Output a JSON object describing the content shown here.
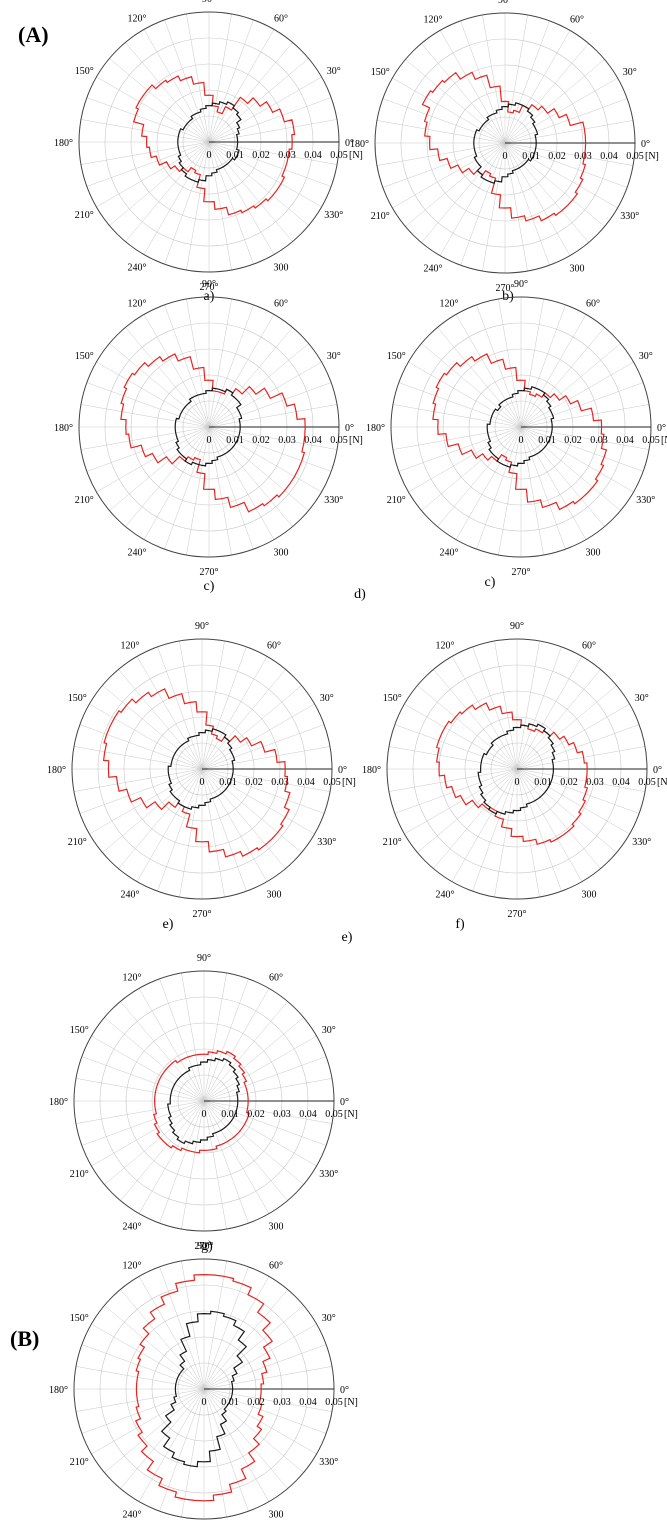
{
  "panels": [
    {
      "tag": "(A)"
    },
    {
      "tag": "(B)"
    }
  ],
  "captions": [
    "a)",
    "b)",
    "c)",
    "d)",
    "c)",
    "e)",
    "e)",
    "f)",
    "g)"
  ],
  "axes": {
    "angle_labels": [
      "0°",
      "30°",
      "60°",
      "90°",
      "120°",
      "150°",
      "180°",
      "210°",
      "240°",
      "270°",
      "300",
      "330°"
    ],
    "radial_tick_labels": [
      "0",
      "0.01",
      "0.02",
      "0.03",
      "0.04",
      "0.05"
    ],
    "unit_label": "[N]"
  },
  "colors": {
    "series_red": "#e8231f",
    "series_black": "#1a1a1a",
    "grid": "#c8c8c8",
    "frame": "#444444"
  },
  "chart_data": [
    {
      "type": "polar-step",
      "panel": "a)",
      "rlim": [
        0,
        0.05
      ],
      "bins_deg": 10,
      "series": [
        {
          "color": "red",
          "values": [
            0.032,
            0.033,
            0.03,
            0.027,
            0.024,
            0.021,
            0.015,
            0.012,
            0.014,
            0.018,
            0.023,
            0.026,
            0.028,
            0.029,
            0.031,
            0.031,
            0.03,
            0.026,
            0.024,
            0.023,
            0.021,
            0.018,
            0.016,
            0.014,
            0.012,
            0.013,
            0.018,
            0.023,
            0.026,
            0.029,
            0.03,
            0.031,
            0.032,
            0.032,
            0.031,
            0.031
          ]
        },
        {
          "color": "black",
          "values": [
            0.011,
            0.011,
            0.012,
            0.013,
            0.015,
            0.016,
            0.017,
            0.016,
            0.015,
            0.014,
            0.013,
            0.012,
            0.012,
            0.011,
            0.011,
            0.011,
            0.012,
            0.012,
            0.012,
            0.012,
            0.012,
            0.013,
            0.014,
            0.015,
            0.016,
            0.016,
            0.015,
            0.013,
            0.012,
            0.011,
            0.011,
            0.011,
            0.011,
            0.012,
            0.012,
            0.011
          ]
        }
      ]
    },
    {
      "type": "polar-step",
      "panel": "b)",
      "rlim": [
        0,
        0.05
      ],
      "bins_deg": 10,
      "series": [
        {
          "color": "red",
          "values": [
            0.031,
            0.031,
            0.026,
            0.023,
            0.02,
            0.018,
            0.016,
            0.013,
            0.012,
            0.016,
            0.022,
            0.027,
            0.03,
            0.033,
            0.034,
            0.035,
            0.032,
            0.031,
            0.029,
            0.026,
            0.023,
            0.02,
            0.017,
            0.015,
            0.013,
            0.014,
            0.02,
            0.025,
            0.029,
            0.031,
            0.033,
            0.034,
            0.034,
            0.033,
            0.032,
            0.031
          ]
        },
        {
          "color": "black",
          "values": [
            0.012,
            0.012,
            0.013,
            0.013,
            0.014,
            0.015,
            0.016,
            0.016,
            0.015,
            0.014,
            0.013,
            0.012,
            0.012,
            0.011,
            0.011,
            0.011,
            0.012,
            0.012,
            0.012,
            0.012,
            0.012,
            0.013,
            0.013,
            0.015,
            0.016,
            0.016,
            0.015,
            0.013,
            0.012,
            0.011,
            0.011,
            0.011,
            0.011,
            0.012,
            0.012,
            0.012
          ]
        }
      ]
    },
    {
      "type": "polar-step",
      "panel": "c)",
      "rlim": [
        0,
        0.05
      ],
      "bins_deg": 10,
      "series": [
        {
          "color": "red",
          "values": [
            0.037,
            0.034,
            0.031,
            0.026,
            0.022,
            0.018,
            0.016,
            0.014,
            0.014,
            0.018,
            0.023,
            0.028,
            0.031,
            0.033,
            0.035,
            0.036,
            0.035,
            0.034,
            0.032,
            0.031,
            0.027,
            0.024,
            0.02,
            0.016,
            0.014,
            0.013,
            0.018,
            0.024,
            0.028,
            0.032,
            0.036,
            0.037,
            0.038,
            0.038,
            0.038,
            0.037
          ]
        },
        {
          "color": "black",
          "values": [
            0.012,
            0.012,
            0.013,
            0.013,
            0.015,
            0.015,
            0.016,
            0.015,
            0.015,
            0.014,
            0.013,
            0.013,
            0.013,
            0.012,
            0.012,
            0.012,
            0.012,
            0.013,
            0.013,
            0.013,
            0.013,
            0.014,
            0.015,
            0.015,
            0.016,
            0.015,
            0.015,
            0.014,
            0.013,
            0.012,
            0.012,
            0.012,
            0.012,
            0.012,
            0.012,
            0.012
          ]
        }
      ]
    },
    {
      "type": "polar-step",
      "panel": "d)",
      "rlim": [
        0,
        0.05
      ],
      "bins_deg": 10,
      "series": [
        {
          "color": "red",
          "values": [
            0.031,
            0.028,
            0.024,
            0.021,
            0.018,
            0.016,
            0.014,
            0.013,
            0.014,
            0.018,
            0.023,
            0.027,
            0.031,
            0.033,
            0.035,
            0.036,
            0.035,
            0.034,
            0.032,
            0.029,
            0.025,
            0.021,
            0.018,
            0.016,
            0.013,
            0.014,
            0.018,
            0.024,
            0.029,
            0.032,
            0.035,
            0.036,
            0.036,
            0.035,
            0.034,
            0.032
          ]
        },
        {
          "color": "black",
          "values": [
            0.012,
            0.012,
            0.013,
            0.013,
            0.014,
            0.015,
            0.016,
            0.016,
            0.015,
            0.014,
            0.013,
            0.012,
            0.012,
            0.012,
            0.011,
            0.012,
            0.012,
            0.012,
            0.013,
            0.013,
            0.013,
            0.014,
            0.015,
            0.015,
            0.016,
            0.016,
            0.015,
            0.014,
            0.013,
            0.012,
            0.012,
            0.012,
            0.012,
            0.012,
            0.012,
            0.012
          ]
        }
      ]
    },
    {
      "type": "polar-step",
      "panel": "e)",
      "rlim": [
        0,
        0.05
      ],
      "bins_deg": 10,
      "series": [
        {
          "color": "red",
          "values": [
            0.032,
            0.029,
            0.025,
            0.021,
            0.018,
            0.015,
            0.013,
            0.014,
            0.017,
            0.022,
            0.026,
            0.03,
            0.034,
            0.036,
            0.038,
            0.039,
            0.039,
            0.038,
            0.036,
            0.033,
            0.03,
            0.026,
            0.022,
            0.018,
            0.016,
            0.018,
            0.023,
            0.028,
            0.032,
            0.035,
            0.037,
            0.038,
            0.038,
            0.037,
            0.035,
            0.033
          ]
        },
        {
          "color": "black",
          "values": [
            0.012,
            0.012,
            0.013,
            0.013,
            0.014,
            0.015,
            0.016,
            0.016,
            0.015,
            0.014,
            0.013,
            0.013,
            0.012,
            0.012,
            0.012,
            0.012,
            0.012,
            0.012,
            0.013,
            0.013,
            0.013,
            0.014,
            0.015,
            0.015,
            0.016,
            0.016,
            0.015,
            0.014,
            0.013,
            0.012,
            0.012,
            0.012,
            0.012,
            0.012,
            0.012,
            0.012
          ]
        }
      ]
    },
    {
      "type": "polar-step",
      "panel": "f)",
      "rlim": [
        0,
        0.05
      ],
      "bins_deg": 10,
      "series": [
        {
          "color": "red",
          "values": [
            0.027,
            0.026,
            0.024,
            0.022,
            0.02,
            0.018,
            0.017,
            0.016,
            0.017,
            0.019,
            0.022,
            0.025,
            0.028,
            0.03,
            0.031,
            0.032,
            0.032,
            0.031,
            0.03,
            0.028,
            0.026,
            0.024,
            0.021,
            0.019,
            0.018,
            0.02,
            0.023,
            0.026,
            0.028,
            0.03,
            0.031,
            0.031,
            0.03,
            0.029,
            0.028,
            0.027
          ]
        },
        {
          "color": "black",
          "values": [
            0.014,
            0.014,
            0.015,
            0.016,
            0.017,
            0.018,
            0.019,
            0.018,
            0.017,
            0.016,
            0.015,
            0.014,
            0.014,
            0.014,
            0.013,
            0.013,
            0.014,
            0.014,
            0.014,
            0.015,
            0.015,
            0.016,
            0.017,
            0.018,
            0.019,
            0.018,
            0.017,
            0.016,
            0.015,
            0.014,
            0.014,
            0.014,
            0.014,
            0.014,
            0.014,
            0.014
          ]
        }
      ]
    },
    {
      "type": "polar-step",
      "panel": "g)",
      "rlim": [
        0,
        0.05
      ],
      "bins_deg": 10,
      "series": [
        {
          "color": "red",
          "values": [
            0.017,
            0.017,
            0.017,
            0.018,
            0.019,
            0.02,
            0.021,
            0.02,
            0.019,
            0.018,
            0.018,
            0.018,
            0.018,
            0.019,
            0.019,
            0.019,
            0.019,
            0.019,
            0.019,
            0.019,
            0.02,
            0.021,
            0.022,
            0.022,
            0.021,
            0.02,
            0.02,
            0.019,
            0.019,
            0.018,
            0.018,
            0.018,
            0.018,
            0.018,
            0.018,
            0.017
          ]
        },
        {
          "color": "black",
          "values": [
            0.013,
            0.013,
            0.014,
            0.015,
            0.016,
            0.017,
            0.018,
            0.017,
            0.016,
            0.015,
            0.014,
            0.014,
            0.013,
            0.013,
            0.013,
            0.013,
            0.013,
            0.013,
            0.013,
            0.014,
            0.014,
            0.015,
            0.016,
            0.017,
            0.018,
            0.017,
            0.016,
            0.015,
            0.014,
            0.013,
            0.013,
            0.013,
            0.013,
            0.013,
            0.013,
            0.013
          ]
        }
      ]
    },
    {
      "type": "polar-step",
      "panel": "(B)",
      "rlim": [
        0,
        0.05
      ],
      "bins_deg": 10,
      "series": [
        {
          "color": "red",
          "values": [
            0.022,
            0.023,
            0.025,
            0.028,
            0.032,
            0.036,
            0.04,
            0.043,
            0.044,
            0.044,
            0.042,
            0.039,
            0.036,
            0.033,
            0.03,
            0.028,
            0.027,
            0.026,
            0.026,
            0.026,
            0.027,
            0.029,
            0.031,
            0.034,
            0.038,
            0.041,
            0.043,
            0.043,
            0.041,
            0.038,
            0.034,
            0.03,
            0.027,
            0.025,
            0.023,
            0.022
          ]
        },
        {
          "color": "black",
          "values": [
            0.011,
            0.011,
            0.012,
            0.014,
            0.018,
            0.023,
            0.027,
            0.029,
            0.03,
            0.029,
            0.026,
            0.021,
            0.016,
            0.013,
            0.011,
            0.011,
            0.011,
            0.011,
            0.011,
            0.011,
            0.012,
            0.014,
            0.018,
            0.023,
            0.027,
            0.029,
            0.03,
            0.028,
            0.024,
            0.019,
            0.015,
            0.012,
            0.011,
            0.011,
            0.011,
            0.011
          ]
        }
      ]
    }
  ]
}
